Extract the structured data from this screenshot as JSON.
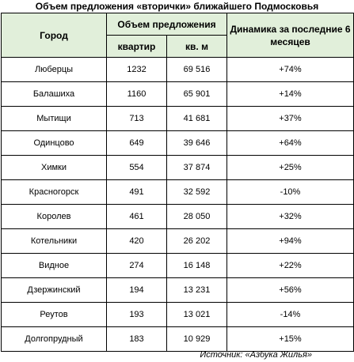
{
  "title": "Объем предложения «вторички» ближайшего Подмосковья",
  "table": {
    "headers": {
      "city": "Город",
      "supply": "Объем предложения",
      "apartments": "квартир",
      "area": "кв. м",
      "dynamics": "Динамика за последние 6 месяцев"
    },
    "rows": [
      {
        "city": "Люберцы",
        "apartments": "1232",
        "area": "69 516",
        "dynamics": "+74%"
      },
      {
        "city": "Балашиха",
        "apartments": "1160",
        "area": "65 901",
        "dynamics": "+14%"
      },
      {
        "city": "Мытищи",
        "apartments": "713",
        "area": "41 681",
        "dynamics": "+37%"
      },
      {
        "city": "Одинцово",
        "apartments": "649",
        "area": "39 646",
        "dynamics": "+64%"
      },
      {
        "city": "Химки",
        "apartments": "554",
        "area": "37 874",
        "dynamics": "+25%"
      },
      {
        "city": "Красногорск",
        "apartments": "491",
        "area": "32 592",
        "dynamics": "-10%"
      },
      {
        "city": "Королев",
        "apartments": "461",
        "area": "28 050",
        "dynamics": "+32%"
      },
      {
        "city": "Котельники",
        "apartments": "420",
        "area": "26 202",
        "dynamics": "+94%"
      },
      {
        "city": "Видное",
        "apartments": "274",
        "area": "16 148",
        "dynamics": "+22%"
      },
      {
        "city": "Дзержинский",
        "apartments": "194",
        "area": "13 231",
        "dynamics": "+56%"
      },
      {
        "city": "Реутов",
        "apartments": "193",
        "area": "13 021",
        "dynamics": "-14%"
      },
      {
        "city": "Долгопрудный",
        "apartments": "183",
        "area": "10 929",
        "dynamics": "+15%"
      }
    ]
  },
  "source": "Источник: «Азбука Жилья»",
  "colors": {
    "header_bg": "#e1efda",
    "border": "#000000"
  }
}
